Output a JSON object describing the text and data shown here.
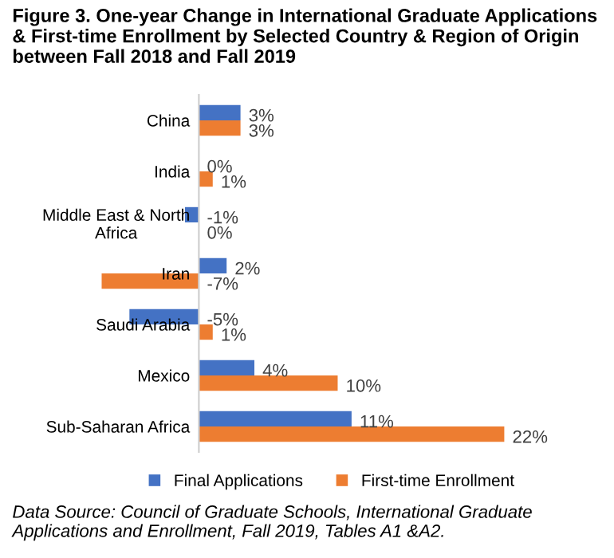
{
  "chart_data": {
    "type": "bar",
    "orientation": "horizontal",
    "title": "Figure 3. One-year Change in International Graduate Applications & First-time Enrollment by Selected Country & Region of Origin between Fall 2018 and Fall 2019",
    "categories": [
      "China",
      "India",
      "Middle East & North\nAfrica",
      "Iran",
      "Saudi Arabia",
      "Mexico",
      "Sub-Saharan Africa"
    ],
    "series": [
      {
        "name": "Final Applications",
        "color": "#4472c4",
        "values": [
          3,
          0,
          -1,
          2,
          -5,
          4,
          11
        ],
        "value_labels": [
          "3%",
          "0%",
          "-1%",
          "2%",
          "-5%",
          "4%",
          "11%"
        ]
      },
      {
        "name": "First-time Enrollment",
        "color": "#ed7d31",
        "values": [
          3,
          1,
          0,
          -7,
          1,
          10,
          22
        ],
        "value_labels": [
          "3%",
          "1%",
          "0%",
          "-7%",
          "1%",
          "10%",
          "22%"
        ]
      }
    ],
    "legend": "bottom",
    "grid": false,
    "annotations": [
      "Data Source: Council of Graduate Schools, International Graduate Applications and Enrollment, Fall 2019, Tables A1 &A2."
    ]
  }
}
